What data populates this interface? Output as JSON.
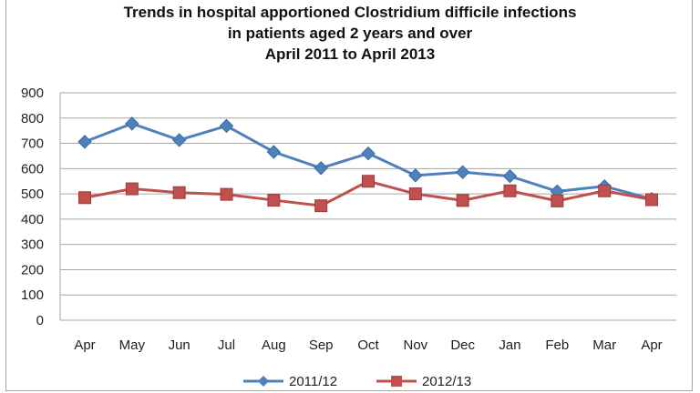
{
  "chart_data": {
    "type": "line",
    "title_lines": [
      "Trends in hospital apportioned Clostridium difficile infections",
      "in patients aged 2 years and over",
      "April 2011 to April 2013"
    ],
    "categories": [
      "Apr",
      "May",
      "Jun",
      "Jul",
      "Aug",
      "Sep",
      "Oct",
      "Nov",
      "Dec",
      "Jan",
      "Feb",
      "Mar",
      "Apr"
    ],
    "series": [
      {
        "name": "2011/12",
        "color": "#4f81bd",
        "marker": "diamond",
        "values": [
          706,
          778,
          713,
          769,
          666,
          602,
          660,
          573,
          586,
          570,
          510,
          530,
          480
        ]
      },
      {
        "name": "2012/13",
        "color": "#c0504d",
        "marker": "square",
        "values": [
          485,
          520,
          505,
          498,
          475,
          453,
          550,
          500,
          474,
          512,
          472,
          512,
          477
        ]
      }
    ],
    "ylim": [
      0,
      900
    ],
    "yticks": [
      0,
      100,
      200,
      300,
      400,
      500,
      600,
      700,
      800,
      900
    ],
    "grid": true,
    "legend_position": "bottom"
  }
}
